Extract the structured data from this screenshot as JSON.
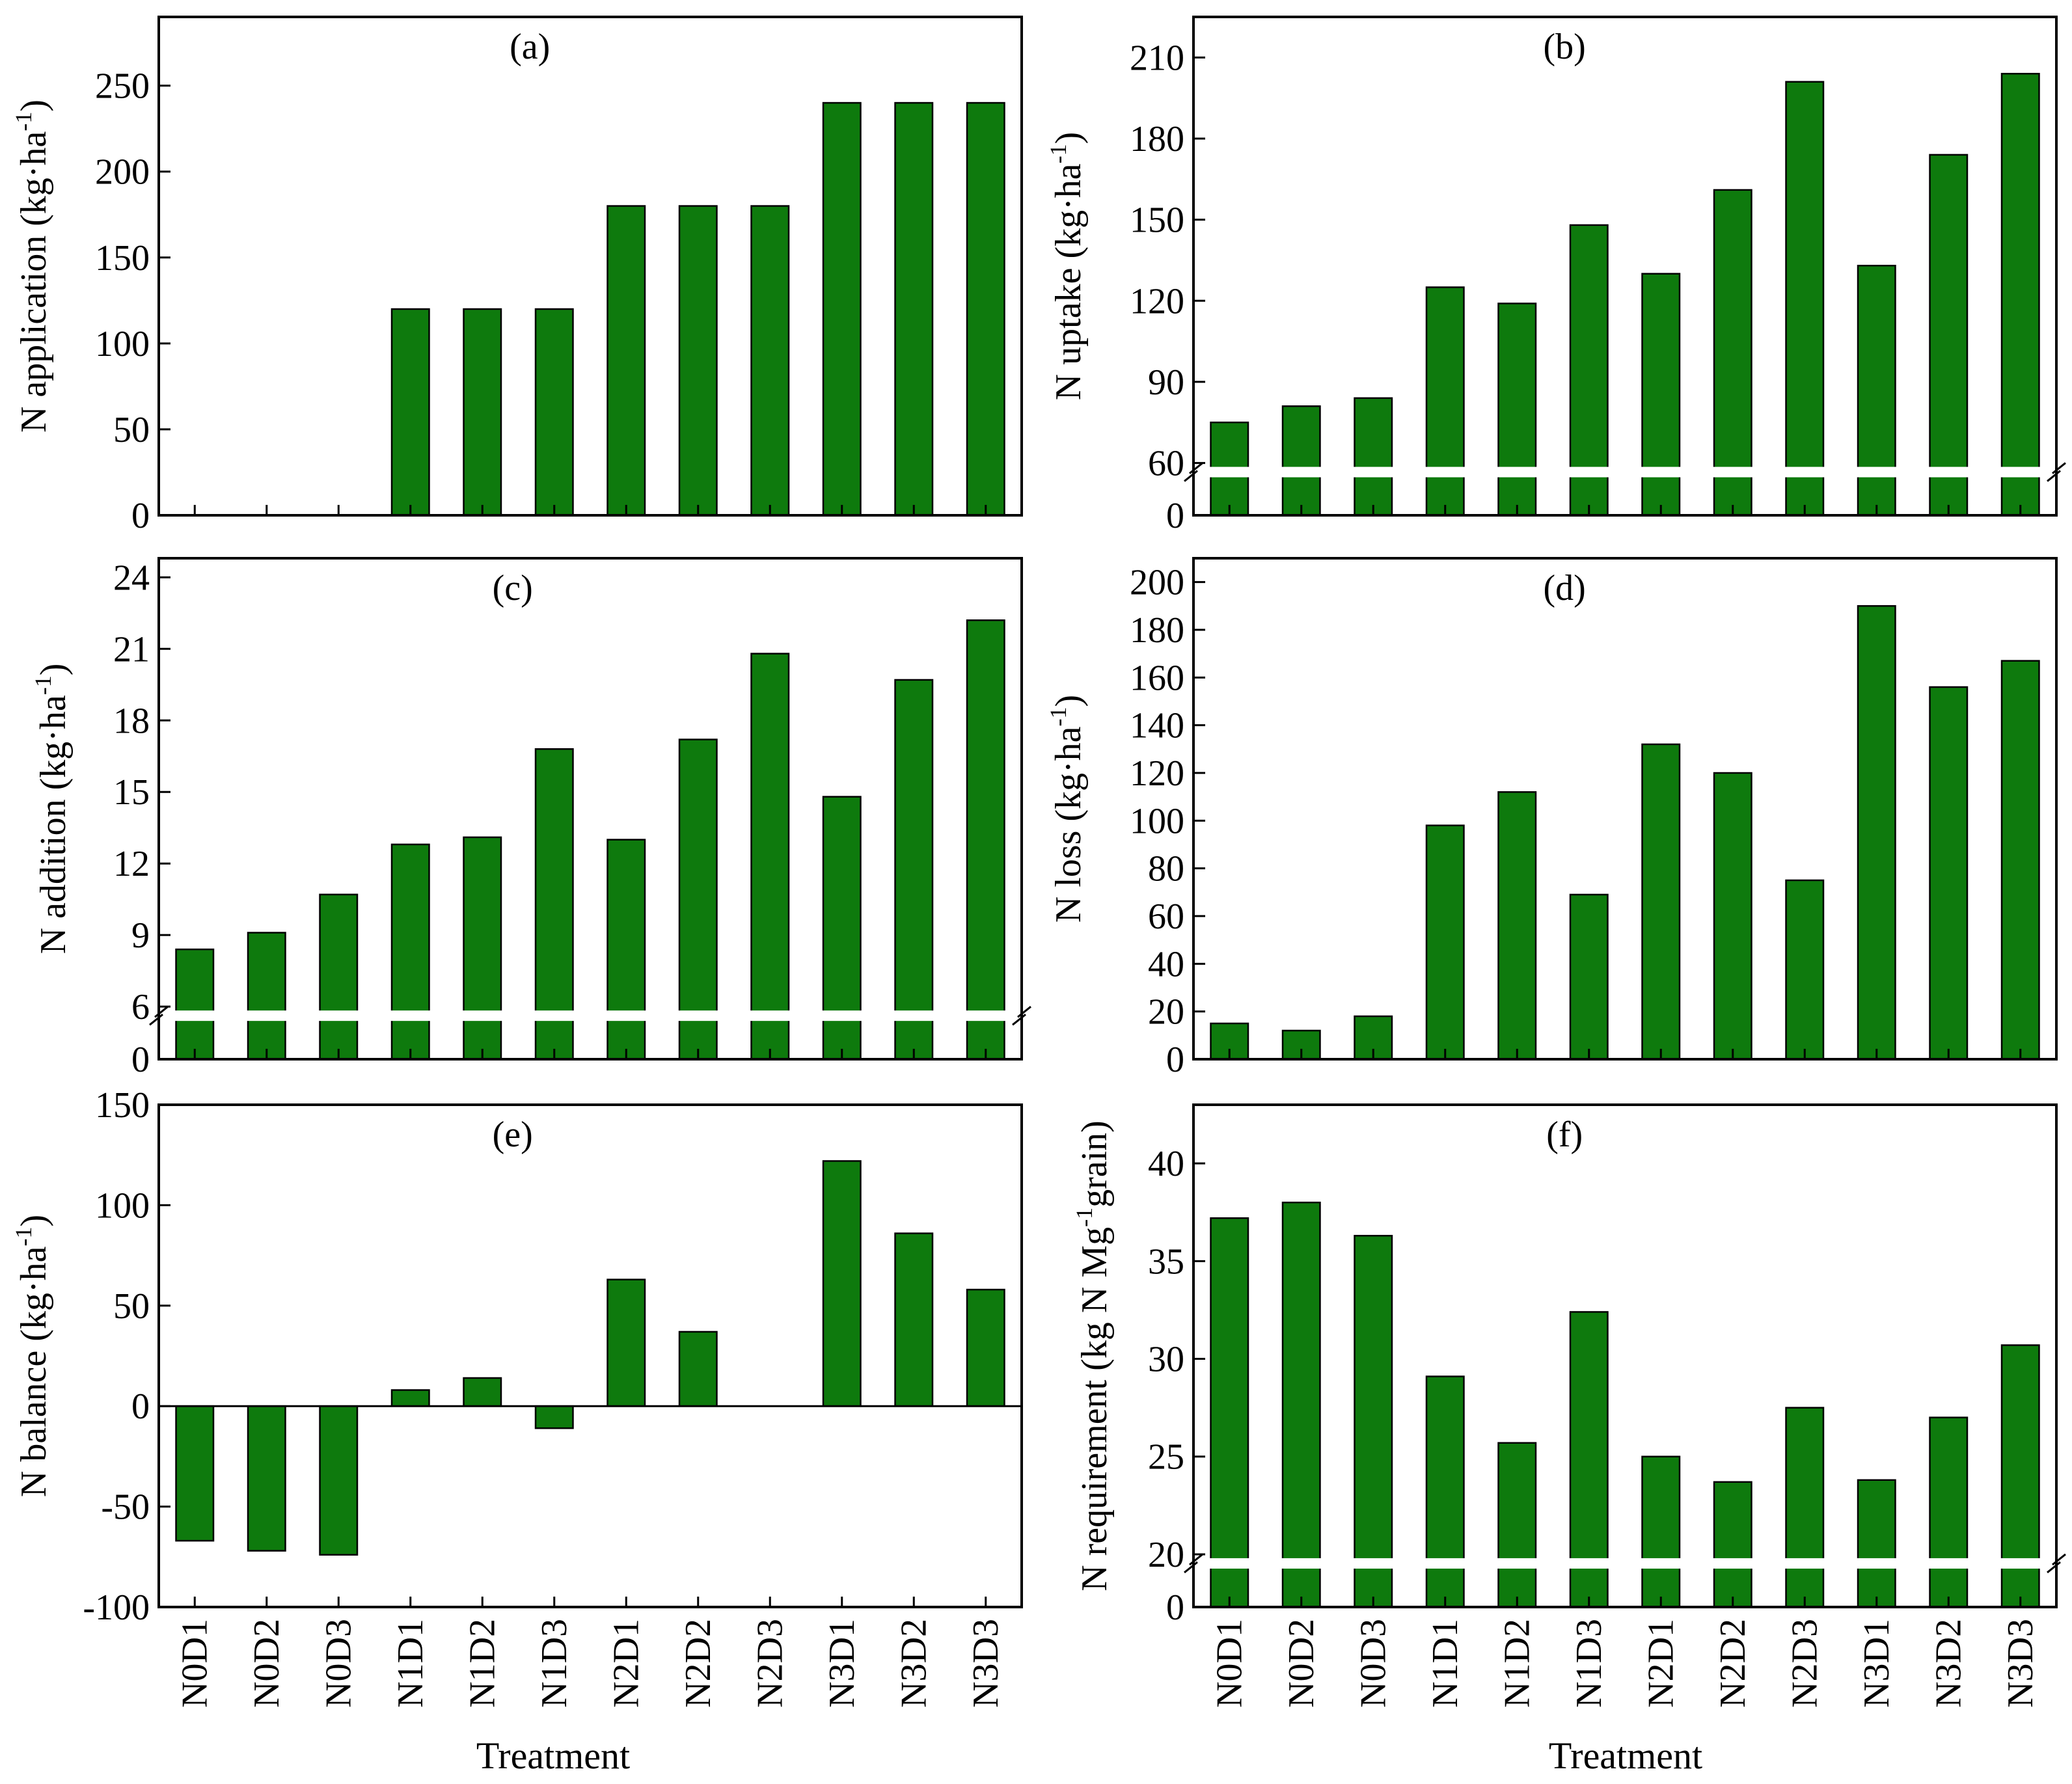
{
  "figure": {
    "bar_color": "#0e7a0d",
    "axis_color": "#000000",
    "x_title": "Treatment"
  },
  "chart_data": [
    {
      "id": "a",
      "type": "bar",
      "title": "(a)",
      "ylabel_main": "N application (kg·ha",
      "ylabel_sup": "-1",
      "ylabel_end": ")",
      "categories": [
        "N0D1",
        "N0D2",
        "N0D3",
        "N1D1",
        "N1D2",
        "N1D3",
        "N2D1",
        "N2D2",
        "N2D3",
        "N3D1",
        "N3D2",
        "N3D3"
      ],
      "values": [
        0,
        0,
        0,
        120,
        120,
        120,
        180,
        180,
        180,
        240,
        240,
        240
      ],
      "ylim": [
        0,
        290
      ],
      "ticks": [
        0,
        50,
        100,
        150,
        200,
        250
      ],
      "axis_break": null
    },
    {
      "id": "b",
      "type": "bar",
      "title": "(b)",
      "ylabel_main": "N uptake (kg·ha",
      "ylabel_sup": "-1",
      "ylabel_end": ")",
      "categories": [
        "N0D1",
        "N0D2",
        "N0D3",
        "N1D1",
        "N1D2",
        "N1D3",
        "N2D1",
        "N2D2",
        "N2D3",
        "N3D1",
        "N3D2",
        "N3D3"
      ],
      "values": [
        75,
        81,
        84,
        125,
        119,
        148,
        130,
        161,
        201,
        133,
        174,
        204
      ],
      "ylim": [
        0,
        225
      ],
      "ticks": [
        0,
        60,
        90,
        120,
        150,
        180,
        210
      ],
      "axis_break": {
        "from": 0,
        "to": 60,
        "value": 60
      }
    },
    {
      "id": "c",
      "type": "bar",
      "title": "(c)",
      "ylabel_main": "N addition (kg·ha",
      "ylabel_sup": "-1",
      "ylabel_end": ")",
      "categories": [
        "N0D1",
        "N0D2",
        "N0D3",
        "N1D1",
        "N1D2",
        "N1D3",
        "N2D1",
        "N2D2",
        "N2D3",
        "N3D1",
        "N3D2",
        "N3D3"
      ],
      "values": [
        8.4,
        9.1,
        10.7,
        12.8,
        13.1,
        16.8,
        13.0,
        17.2,
        20.8,
        14.8,
        19.7,
        22.2
      ],
      "ylim": [
        0,
        24.8
      ],
      "ticks": [
        0,
        6,
        9,
        12,
        15,
        18,
        21,
        24
      ],
      "axis_break": {
        "from": 0,
        "to": 6,
        "value": 6
      }
    },
    {
      "id": "d",
      "type": "bar",
      "title": "(d)",
      "ylabel_main": "N loss (kg·ha",
      "ylabel_sup": "-1",
      "ylabel_end": ")",
      "categories": [
        "N0D1",
        "N0D2",
        "N0D3",
        "N1D1",
        "N1D2",
        "N1D3",
        "N2D1",
        "N2D2",
        "N2D3",
        "N3D1",
        "N3D2",
        "N3D3"
      ],
      "values": [
        15,
        12,
        18,
        98,
        112,
        69,
        132,
        120,
        75,
        190,
        156,
        167
      ],
      "ylim": [
        0,
        210
      ],
      "ticks": [
        0,
        20,
        40,
        60,
        80,
        100,
        120,
        140,
        160,
        180,
        200
      ],
      "axis_break": null
    },
    {
      "id": "e",
      "type": "bar",
      "title": "(e)",
      "ylabel_main": "N balance (kg·ha",
      "ylabel_sup": "-1",
      "ylabel_end": ")",
      "categories": [
        "N0D1",
        "N0D2",
        "N0D3",
        "N1D1",
        "N1D2",
        "N1D3",
        "N2D1",
        "N2D2",
        "N2D3",
        "N3D1",
        "N3D2",
        "N3D3"
      ],
      "values": [
        -67,
        -72,
        -74,
        8,
        14,
        -11,
        63,
        37,
        0,
        122,
        86,
        58
      ],
      "ylim": [
        -100,
        150
      ],
      "ticks": [
        -100,
        -50,
        0,
        50,
        100,
        150
      ],
      "axis_break": null
    },
    {
      "id": "f",
      "type": "bar",
      "title": "(f)",
      "ylabel_main": "N requirement (kg N Mg",
      "ylabel_sup": "-1",
      "ylabel_end": "grain)",
      "categories": [
        "N0D1",
        "N0D2",
        "N0D3",
        "N1D1",
        "N1D2",
        "N1D3",
        "N2D1",
        "N2D2",
        "N2D3",
        "N3D1",
        "N3D2",
        "N3D3"
      ],
      "values": [
        37.2,
        38.0,
        36.3,
        29.1,
        25.7,
        32.4,
        25.0,
        23.7,
        27.5,
        23.8,
        27.0,
        30.7
      ],
      "ylim": [
        0,
        43.0
      ],
      "ticks": [
        0,
        20,
        25,
        30,
        35,
        40
      ],
      "axis_break": {
        "from": 0,
        "to": 20,
        "value": 20
      }
    }
  ]
}
